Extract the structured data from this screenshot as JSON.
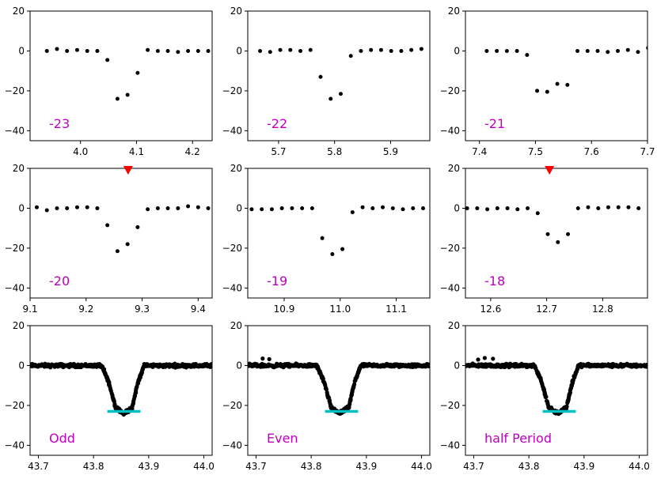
{
  "chart_data": [
    {
      "type": "scatter",
      "label": "-23",
      "marker": false,
      "xlim": [
        3.91,
        4.235
      ],
      "ylim": [
        -45,
        20
      ],
      "xticks": [
        4.0,
        4.1,
        4.2
      ],
      "xticklabels": [
        "4.0",
        "4.1",
        "4.2"
      ],
      "yticks": [
        20,
        0,
        -20,
        -40
      ],
      "x": [
        3.94,
        3.958,
        3.976,
        3.994,
        4.012,
        4.03,
        4.048,
        4.066,
        4.084,
        4.102,
        4.12,
        4.138,
        4.156,
        4.174,
        4.192,
        4.21,
        4.228
      ],
      "y": [
        0,
        1,
        0,
        0.5,
        0,
        0,
        -4.5,
        -24,
        -22,
        -11,
        0.5,
        0,
        0,
        -0.5,
        0,
        0,
        0
      ]
    },
    {
      "type": "scatter",
      "label": "-22",
      "marker": false,
      "xlim": [
        5.645,
        5.97
      ],
      "ylim": [
        -45,
        20
      ],
      "xticks": [
        5.7,
        5.8,
        5.9
      ],
      "xticklabels": [
        "5.7",
        "5.8",
        "5.9"
      ],
      "yticks": [
        20,
        0,
        -20,
        -40
      ],
      "x": [
        5.667,
        5.685,
        5.703,
        5.721,
        5.739,
        5.757,
        5.775,
        5.793,
        5.811,
        5.829,
        5.847,
        5.865,
        5.883,
        5.901,
        5.919,
        5.937,
        5.955
      ],
      "y": [
        0,
        -0.5,
        0.5,
        0.5,
        0,
        0.5,
        -13,
        -24,
        -21.5,
        -2.5,
        0,
        0.5,
        0.5,
        0,
        0,
        0.5,
        1
      ]
    },
    {
      "type": "scatter",
      "label": "-21",
      "marker": false,
      "xlim": [
        7.375,
        7.7
      ],
      "ylim": [
        -45,
        20
      ],
      "xticks": [
        7.4,
        7.5,
        7.6,
        7.7
      ],
      "xticklabels": [
        "7.4",
        "7.5",
        "7.6",
        "7.7"
      ],
      "yticks": [
        20,
        0,
        -20,
        -40
      ],
      "x": [
        7.413,
        7.431,
        7.449,
        7.467,
        7.485,
        7.503,
        7.521,
        7.539,
        7.557,
        7.575,
        7.593,
        7.611,
        7.629,
        7.647,
        7.665,
        7.683,
        7.701
      ],
      "y": [
        0,
        0,
        0,
        0,
        -2,
        -20,
        -20.5,
        -16.5,
        -17,
        0,
        0,
        0,
        -0.5,
        0,
        0.5,
        -0.5,
        1.5
      ]
    },
    {
      "type": "scatter",
      "label": "-20",
      "marker": true,
      "marker_x": 9.275,
      "xlim": [
        9.1,
        9.425
      ],
      "ylim": [
        -45,
        20
      ],
      "xticks": [
        9.1,
        9.2,
        9.3,
        9.4
      ],
      "xticklabels": [
        "9.1",
        "9.2",
        "9.3",
        "9.4"
      ],
      "yticks": [
        20,
        0,
        -20,
        -40
      ],
      "x": [
        9.112,
        9.13,
        9.148,
        9.166,
        9.184,
        9.202,
        9.22,
        9.238,
        9.256,
        9.274,
        9.292,
        9.31,
        9.328,
        9.346,
        9.364,
        9.382,
        9.4,
        9.418
      ],
      "y": [
        0.5,
        -1,
        0,
        0,
        0.5,
        0.5,
        0,
        -8.5,
        -21.5,
        -18,
        -9.5,
        -0.5,
        0,
        0,
        0,
        1,
        0.5,
        0
      ]
    },
    {
      "type": "scatter",
      "label": "-19",
      "marker": false,
      "xlim": [
        10.835,
        11.16
      ],
      "ylim": [
        -45,
        20
      ],
      "xticks": [
        10.9,
        11.0,
        11.1
      ],
      "xticklabels": [
        "10.9",
        "11.0",
        "11.1"
      ],
      "yticks": [
        20,
        0,
        -20,
        -40
      ],
      "x": [
        10.842,
        10.86,
        10.878,
        10.896,
        10.914,
        10.932,
        10.95,
        10.968,
        10.986,
        11.004,
        11.022,
        11.04,
        11.058,
        11.076,
        11.094,
        11.112,
        11.13,
        11.148
      ],
      "y": [
        -0.5,
        -0.5,
        -0.5,
        0,
        0,
        0,
        0,
        -15,
        -23,
        -20.5,
        -2,
        0.5,
        0,
        0.5,
        0,
        -0.5,
        0,
        0
      ]
    },
    {
      "type": "scatter",
      "label": "-18",
      "marker": true,
      "marker_x": 12.705,
      "xlim": [
        12.555,
        12.88
      ],
      "ylim": [
        -45,
        20
      ],
      "xticks": [
        12.6,
        12.7,
        12.8
      ],
      "xticklabels": [
        "12.6",
        "12.7",
        "12.8"
      ],
      "yticks": [
        20,
        0,
        -20,
        -40
      ],
      "x": [
        12.558,
        12.576,
        12.594,
        12.612,
        12.63,
        12.648,
        12.666,
        12.684,
        12.702,
        12.72,
        12.738,
        12.756,
        12.774,
        12.792,
        12.81,
        12.828,
        12.846,
        12.864
      ],
      "y": [
        0,
        0,
        -0.5,
        0,
        0,
        -0.5,
        0,
        -2.5,
        -13,
        -17,
        -13,
        0,
        0.5,
        0,
        0.5,
        0.5,
        0.5,
        0
      ]
    },
    {
      "type": "scatter",
      "label": "Odd",
      "folded": true,
      "spikes": [],
      "xlim": [
        43.685,
        44.015
      ],
      "ylim": [
        -45,
        20
      ],
      "xticks": [
        43.7,
        43.8,
        43.9,
        44.0
      ],
      "xticklabels": [
        "43.7",
        "43.8",
        "43.9",
        "44.0"
      ],
      "yticks": [
        20,
        0,
        -20,
        -40
      ],
      "model": [
        [
          43.685,
          0
        ],
        [
          43.815,
          0
        ],
        [
          43.827,
          -8
        ],
        [
          43.84,
          -21
        ],
        [
          43.855,
          -24
        ],
        [
          43.87,
          -21
        ],
        [
          43.881,
          -8
        ],
        [
          43.892,
          0
        ],
        [
          44.015,
          0
        ]
      ],
      "bar": {
        "x0": 43.825,
        "x1": 43.885,
        "y": -23
      }
    },
    {
      "type": "scatter",
      "label": "Even",
      "folded": true,
      "spikes": [
        [
          43.712,
          3.5
        ],
        [
          43.724,
          3.2
        ]
      ],
      "xlim": [
        43.685,
        44.015
      ],
      "ylim": [
        -45,
        20
      ],
      "xticks": [
        43.7,
        43.8,
        43.9,
        44.0
      ],
      "xticklabels": [
        "43.7",
        "43.8",
        "43.9",
        "44.0"
      ],
      "yticks": [
        20,
        0,
        -20,
        -40
      ],
      "model": [
        [
          43.685,
          0
        ],
        [
          43.81,
          0
        ],
        [
          43.823,
          -8
        ],
        [
          43.836,
          -21
        ],
        [
          43.852,
          -24
        ],
        [
          43.868,
          -21
        ],
        [
          43.879,
          -8
        ],
        [
          43.89,
          0
        ],
        [
          44.015,
          0
        ]
      ],
      "bar": {
        "x0": 43.825,
        "x1": 43.885,
        "y": -23
      }
    },
    {
      "type": "scatter",
      "label": "half Period",
      "folded": true,
      "spikes": [
        [
          43.708,
          3
        ],
        [
          43.72,
          3.8
        ],
        [
          43.735,
          3.4
        ]
      ],
      "xlim": [
        43.685,
        44.015
      ],
      "ylim": [
        -45,
        20
      ],
      "xticks": [
        43.7,
        43.8,
        43.9,
        44.0
      ],
      "xticklabels": [
        "43.7",
        "43.8",
        "43.9",
        "44.0"
      ],
      "yticks": [
        20,
        0,
        -20,
        -40
      ],
      "model": [
        [
          43.685,
          0
        ],
        [
          43.81,
          0
        ],
        [
          43.823,
          -8
        ],
        [
          43.836,
          -21
        ],
        [
          43.852,
          -24
        ],
        [
          43.868,
          -21
        ],
        [
          43.879,
          -8
        ],
        [
          43.89,
          0
        ],
        [
          44.015,
          0
        ]
      ],
      "bar": {
        "x0": 43.825,
        "x1": 43.885,
        "y": -23
      }
    }
  ],
  "colors": {
    "points": "#000000",
    "label": "#bf00bf",
    "marker": "#ff0000",
    "bar": "#00bfbf",
    "axes": "#000000"
  }
}
